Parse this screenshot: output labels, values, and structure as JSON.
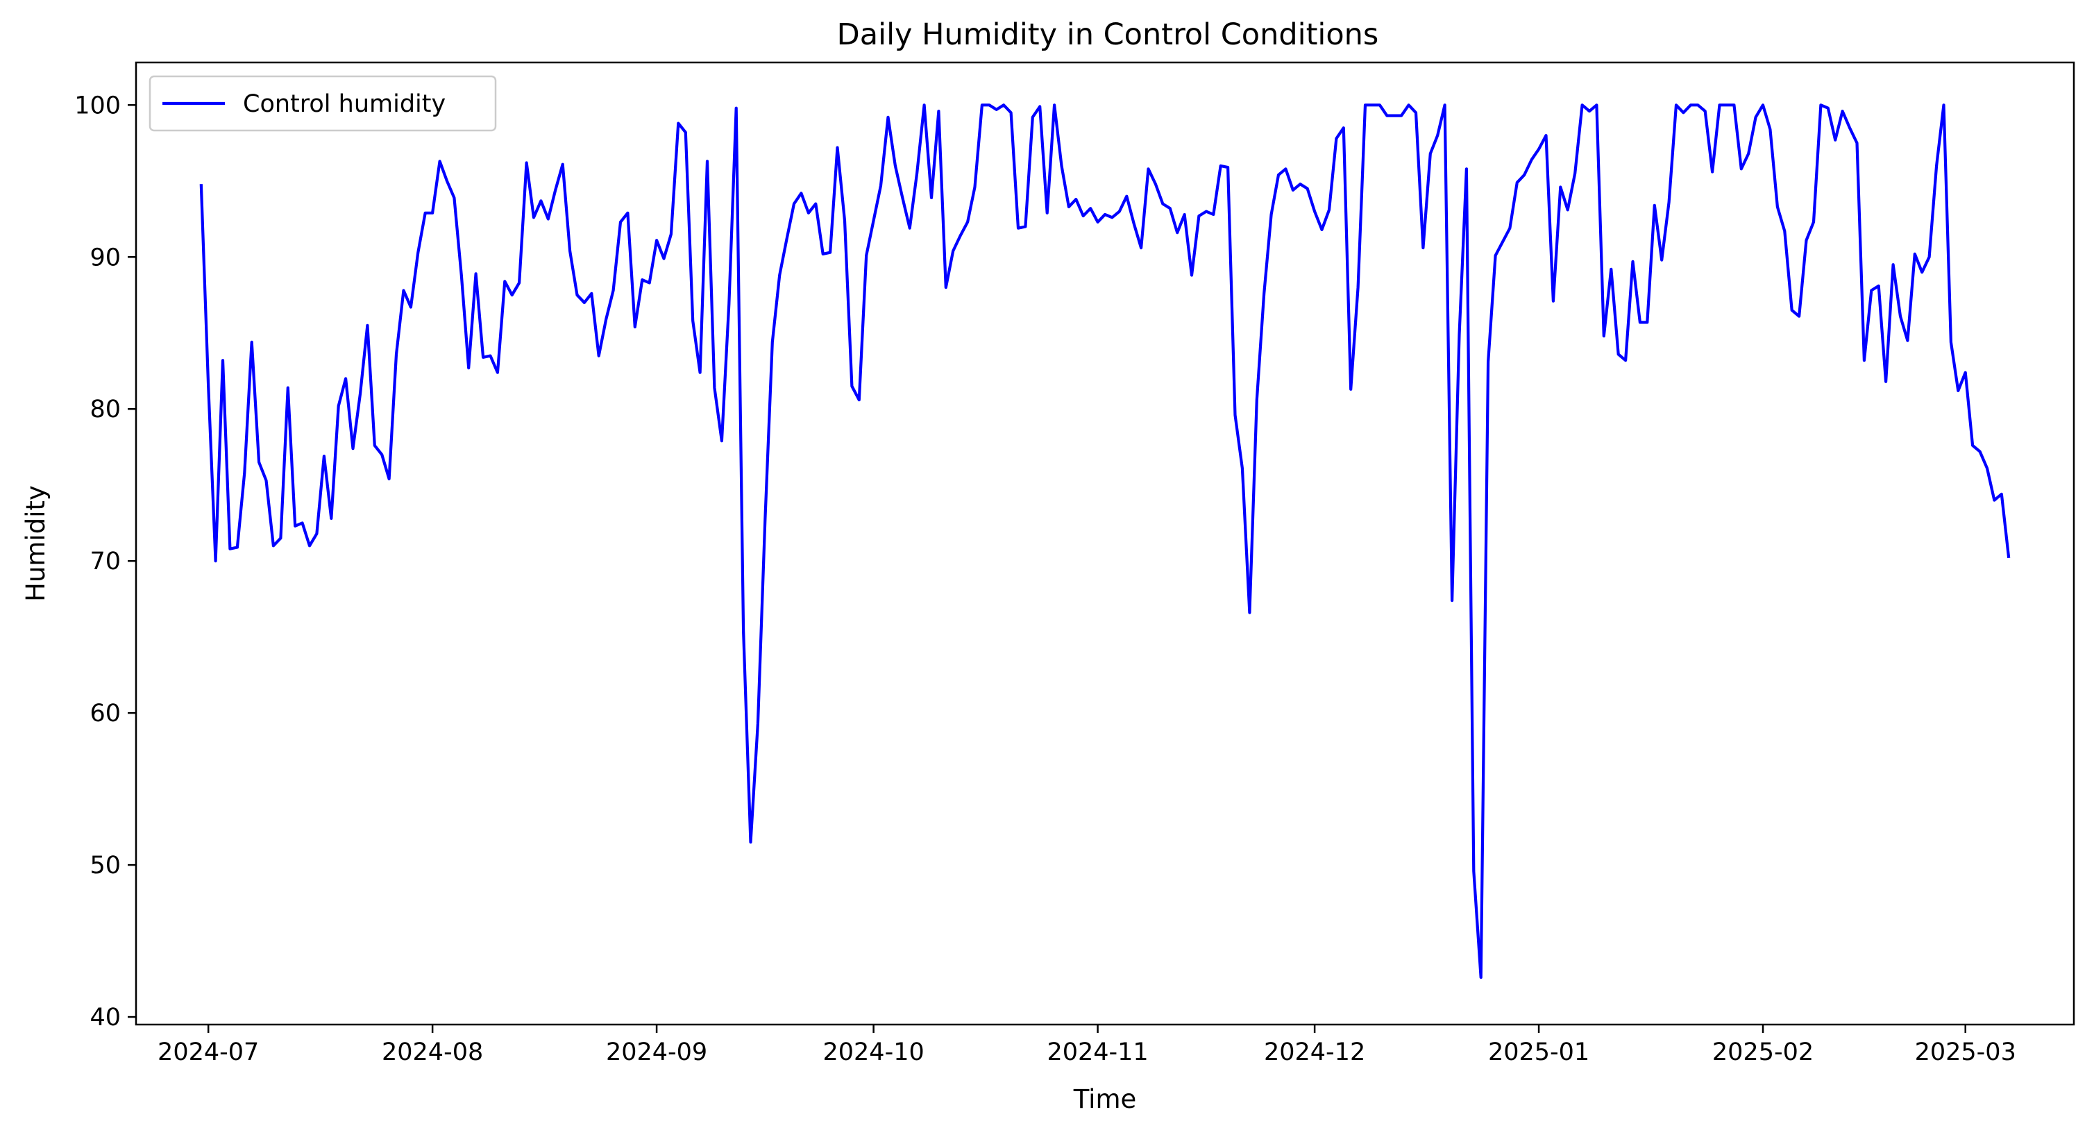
{
  "chart_data": {
    "type": "line",
    "title": "Daily Humidity in Control Conditions",
    "xlabel": "Time",
    "ylabel": "Humidity",
    "x_ticks": [
      "2024-07",
      "2024-08",
      "2024-09",
      "2024-10",
      "2024-11",
      "2024-12",
      "2025-01",
      "2025-02",
      "2025-03"
    ],
    "y_ticks": [
      "40",
      "50",
      "60",
      "70",
      "80",
      "90",
      "100"
    ],
    "xlim": [
      "2024-06-21",
      "2025-03-16"
    ],
    "ylim": [
      39.5,
      102.8
    ],
    "grid": false,
    "legend_position": "top-left",
    "colors": {
      "series": "#0000ff",
      "axes": "#000000",
      "legend_border": "#cccccc"
    },
    "series": [
      {
        "name": "Control humidity",
        "x": [
          "2024-06-30",
          "2024-07-01",
          "2024-07-02",
          "2024-07-03",
          "2024-07-04",
          "2024-07-05",
          "2024-07-06",
          "2024-07-07",
          "2024-07-08",
          "2024-07-09",
          "2024-07-10",
          "2024-07-11",
          "2024-07-12",
          "2024-07-13",
          "2024-07-14",
          "2024-07-15",
          "2024-07-16",
          "2024-07-17",
          "2024-07-18",
          "2024-07-19",
          "2024-07-20",
          "2024-07-21",
          "2024-07-22",
          "2024-07-23",
          "2024-07-24",
          "2024-07-25",
          "2024-07-26",
          "2024-07-27",
          "2024-07-28",
          "2024-07-29",
          "2024-07-30",
          "2024-07-31",
          "2024-08-01",
          "2024-08-02",
          "2024-08-03",
          "2024-08-04",
          "2024-08-05",
          "2024-08-06",
          "2024-08-07",
          "2024-08-08",
          "2024-08-09",
          "2024-08-10",
          "2024-08-11",
          "2024-08-12",
          "2024-08-13",
          "2024-08-14",
          "2024-08-15",
          "2024-08-16",
          "2024-08-17",
          "2024-08-18",
          "2024-08-19",
          "2024-08-20",
          "2024-08-21",
          "2024-08-22",
          "2024-08-23",
          "2024-08-24",
          "2024-08-25",
          "2024-08-26",
          "2024-08-27",
          "2024-08-28",
          "2024-08-29",
          "2024-08-30",
          "2024-08-31",
          "2024-09-01",
          "2024-09-02",
          "2024-09-03",
          "2024-09-04",
          "2024-09-05",
          "2024-09-06",
          "2024-09-07",
          "2024-09-08",
          "2024-09-09",
          "2024-09-10",
          "2024-09-11",
          "2024-09-12",
          "2024-09-13",
          "2024-09-14",
          "2024-09-15",
          "2024-09-16",
          "2024-09-17",
          "2024-09-18",
          "2024-09-19",
          "2024-09-20",
          "2024-09-21",
          "2024-09-22",
          "2024-09-23",
          "2024-09-24",
          "2024-09-25",
          "2024-09-26",
          "2024-09-27",
          "2024-09-28",
          "2024-09-29",
          "2024-09-30",
          "2024-10-01",
          "2024-10-02",
          "2024-10-03",
          "2024-10-04",
          "2024-10-05",
          "2024-10-06",
          "2024-10-07",
          "2024-10-08",
          "2024-10-09",
          "2024-10-10",
          "2024-10-11",
          "2024-10-12",
          "2024-10-13",
          "2024-10-14",
          "2024-10-15",
          "2024-10-16",
          "2024-10-17",
          "2024-10-18",
          "2024-10-19",
          "2024-10-20",
          "2024-10-21",
          "2024-10-22",
          "2024-10-23",
          "2024-10-24",
          "2024-10-25",
          "2024-10-26",
          "2024-10-27",
          "2024-10-28",
          "2024-10-29",
          "2024-10-30",
          "2024-10-31",
          "2024-11-01",
          "2024-11-02",
          "2024-11-03",
          "2024-11-04",
          "2024-11-05",
          "2024-11-06",
          "2024-11-07",
          "2024-11-08",
          "2024-11-09",
          "2024-11-10",
          "2024-11-11",
          "2024-11-12",
          "2024-11-13",
          "2024-11-14",
          "2024-11-15",
          "2024-11-16",
          "2024-11-17",
          "2024-11-18",
          "2024-11-19",
          "2024-11-20",
          "2024-11-21",
          "2024-11-22",
          "2024-11-23",
          "2024-11-24",
          "2024-11-25",
          "2024-11-26",
          "2024-11-27",
          "2024-11-28",
          "2024-11-29",
          "2024-11-30",
          "2024-12-01",
          "2024-12-02",
          "2024-12-03",
          "2024-12-04",
          "2024-12-05",
          "2024-12-06",
          "2024-12-07",
          "2024-12-08",
          "2024-12-09",
          "2024-12-10",
          "2024-12-11",
          "2024-12-12",
          "2024-12-13",
          "2024-12-14",
          "2024-12-15",
          "2024-12-16",
          "2024-12-17",
          "2024-12-18",
          "2024-12-19",
          "2024-12-20",
          "2024-12-21",
          "2024-12-22",
          "2024-12-23",
          "2024-12-24",
          "2024-12-25",
          "2024-12-26",
          "2024-12-27",
          "2024-12-28",
          "2024-12-29",
          "2024-12-30",
          "2024-12-31",
          "2025-01-01",
          "2025-01-02",
          "2025-01-03",
          "2025-01-04",
          "2025-01-05",
          "2025-01-06",
          "2025-01-07",
          "2025-01-08",
          "2025-01-09",
          "2025-01-10",
          "2025-01-11",
          "2025-01-12",
          "2025-01-13",
          "2025-01-14",
          "2025-01-15",
          "2025-01-16",
          "2025-01-17",
          "2025-01-18",
          "2025-01-19",
          "2025-01-20",
          "2025-01-21",
          "2025-01-22",
          "2025-01-23",
          "2025-01-24",
          "2025-01-25",
          "2025-01-26",
          "2025-01-27",
          "2025-01-28",
          "2025-01-29",
          "2025-01-30",
          "2025-01-31",
          "2025-02-01",
          "2025-02-02",
          "2025-02-03",
          "2025-02-04",
          "2025-02-05",
          "2025-02-06",
          "2025-02-07",
          "2025-02-08",
          "2025-02-09",
          "2025-02-10",
          "2025-02-11",
          "2025-02-12",
          "2025-02-13",
          "2025-02-14",
          "2025-02-15",
          "2025-02-16",
          "2025-02-17",
          "2025-02-18",
          "2025-02-19",
          "2025-02-20",
          "2025-02-21",
          "2025-02-22",
          "2025-02-23",
          "2025-02-24",
          "2025-02-25",
          "2025-02-26",
          "2025-02-27",
          "2025-02-28",
          "2025-03-01",
          "2025-03-02",
          "2025-03-03",
          "2025-03-04",
          "2025-03-05",
          "2025-03-06",
          "2025-03-07"
        ],
        "y": [
          94.8,
          81.5,
          70.0,
          83.2,
          70.8,
          70.9,
          75.8,
          84.4,
          76.5,
          75.3,
          71.0,
          71.5,
          81.4,
          72.3,
          72.5,
          71.0,
          71.8,
          76.9,
          72.8,
          80.2,
          82.0,
          77.4,
          81.0,
          85.5,
          77.6,
          77.0,
          75.4,
          83.6,
          87.8,
          86.7,
          90.3,
          92.9,
          92.9,
          96.3,
          95.0,
          93.9,
          88.8,
          82.7,
          88.9,
          83.4,
          83.5,
          82.4,
          88.4,
          87.5,
          88.3,
          96.2,
          92.6,
          93.7,
          92.5,
          94.4,
          96.1,
          90.4,
          87.5,
          87.0,
          87.6,
          83.5,
          85.9,
          87.8,
          92.3,
          92.9,
          85.4,
          88.5,
          88.3,
          91.1,
          89.9,
          91.5,
          98.8,
          98.2,
          85.8,
          82.4,
          96.3,
          81.4,
          77.9,
          86.9,
          99.8,
          65.4,
          51.5,
          59.3,
          72.8,
          84.4,
          88.8,
          91.2,
          93.5,
          94.2,
          92.9,
          93.5,
          90.2,
          90.3,
          97.2,
          92.4,
          81.5,
          80.6,
          90.1,
          92.4,
          94.7,
          99.2,
          96.0,
          93.9,
          91.9,
          95.5,
          100.0,
          93.9,
          99.6,
          88.0,
          90.4,
          91.4,
          92.3,
          94.6,
          100.0,
          100.0,
          99.7,
          100.0,
          99.5,
          91.9,
          92.0,
          99.2,
          99.9,
          92.9,
          100.0,
          96.0,
          93.3,
          93.8,
          92.7,
          93.2,
          92.3,
          92.8,
          92.6,
          93.0,
          94.0,
          92.2,
          90.6,
          95.8,
          94.8,
          93.5,
          93.2,
          91.6,
          92.8,
          88.8,
          92.7,
          93.0,
          92.8,
          96.0,
          95.9,
          79.6,
          76.1,
          66.6,
          80.6,
          87.6,
          92.8,
          95.4,
          95.8,
          94.4,
          94.8,
          94.5,
          93.0,
          91.8,
          93.1,
          97.8,
          98.5,
          81.3,
          88.0,
          100.0,
          100.0,
          100.0,
          99.3,
          99.3,
          99.3,
          100.0,
          99.5,
          90.6,
          96.8,
          98.0,
          100.0,
          67.4,
          84.9,
          95.8,
          49.6,
          42.6,
          83.1,
          90.1,
          91.0,
          91.9,
          94.9,
          95.4,
          96.4,
          97.1,
          98.0,
          87.1,
          94.6,
          93.1,
          95.5,
          100.0,
          99.6,
          100.0,
          84.8,
          89.2,
          83.6,
          83.2,
          89.7,
          85.7,
          85.7,
          93.4,
          89.8,
          93.6,
          100.0,
          99.5,
          100.0,
          100.0,
          99.6,
          95.6,
          100.0,
          100.0,
          100.0,
          95.8,
          96.8,
          99.2,
          100.0,
          98.4,
          93.3,
          91.7,
          86.5,
          86.1,
          91.1,
          92.3,
          100.0,
          99.8,
          97.7,
          99.6,
          98.5,
          97.5,
          83.2,
          87.8,
          88.1,
          81.8,
          89.5,
          86.1,
          84.5,
          90.2,
          89.0,
          90.0,
          96.0,
          100.0,
          84.4,
          81.2,
          82.4,
          77.6,
          77.2,
          76.1,
          74.0,
          74.4,
          70.2
        ]
      }
    ]
  }
}
